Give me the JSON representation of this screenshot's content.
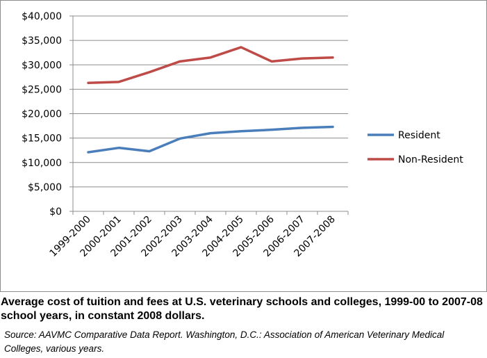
{
  "chart_data": {
    "type": "line",
    "categories": [
      "1999-2000",
      "2000-2001",
      "2001-2002",
      "2002-2003",
      "2003-2004",
      "2004-2005",
      "2005-2006",
      "2006-2007",
      "2007-2008"
    ],
    "series": [
      {
        "name": "Resident",
        "color": "#4a7ebb",
        "values": [
          12100,
          13000,
          12300,
          14900,
          16000,
          16400,
          16700,
          17100,
          17300
        ]
      },
      {
        "name": "Non-Resident",
        "color": "#be4b48",
        "values": [
          26300,
          26500,
          28500,
          30700,
          31500,
          33600,
          30700,
          31300,
          31500
        ]
      }
    ],
    "y_ticks": [
      "$40,000",
      "$35,000",
      "$30,000",
      "$25,000",
      "$20,000",
      "$15,000",
      "$10,000",
      "$5,000",
      "$0"
    ],
    "ylim": [
      0,
      40000
    ],
    "ytick_step": 5000,
    "grid": "horizontal",
    "legend_position": "right"
  },
  "caption": "Average cost of tuition and fees at U.S. veterinary schools and colleges, 1999-00 to 2007-08 school  years, in constant 2008 dollars.",
  "source": "Source: AAVMC Comparative Data Report. Washington, D.C.: Association of American Veterinary Medical Colleges, various years."
}
